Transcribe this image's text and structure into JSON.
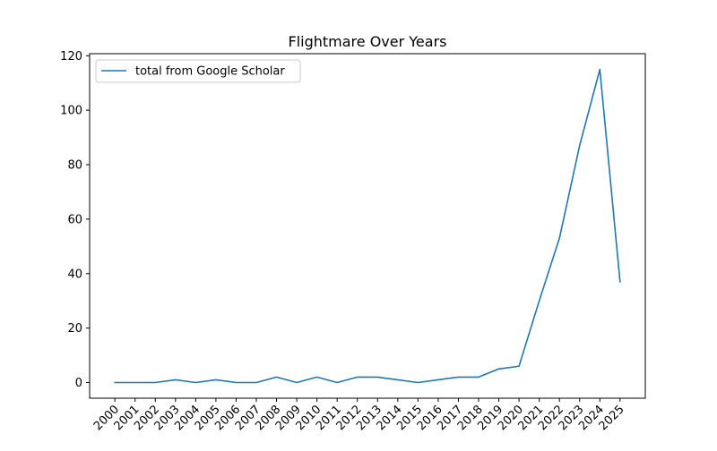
{
  "chart_data": {
    "type": "line",
    "title": "Flightmare Over Years",
    "xlabel": "",
    "ylabel": "",
    "x": [
      "2000",
      "2001",
      "2002",
      "2003",
      "2004",
      "2005",
      "2006",
      "2007",
      "2008",
      "2009",
      "2010",
      "2011",
      "2012",
      "2013",
      "2014",
      "2015",
      "2016",
      "2017",
      "2018",
      "2019",
      "2020",
      "2021",
      "2022",
      "2023",
      "2024",
      "2025"
    ],
    "series": [
      {
        "name": "total from Google Scholar",
        "color": "#1f77b4",
        "values": [
          0,
          0,
          0,
          1,
          0,
          1,
          0,
          0,
          2,
          0,
          2,
          0,
          2,
          2,
          1,
          0,
          1,
          2,
          2,
          5,
          6,
          30,
          53,
          87,
          115,
          37
        ]
      }
    ],
    "ylim": [
      -5.75,
      120.75
    ],
    "yticks": [
      0,
      20,
      40,
      60,
      80,
      100,
      120
    ],
    "grid": false,
    "legend": "upper-left",
    "x_tick_rotation": 45
  }
}
